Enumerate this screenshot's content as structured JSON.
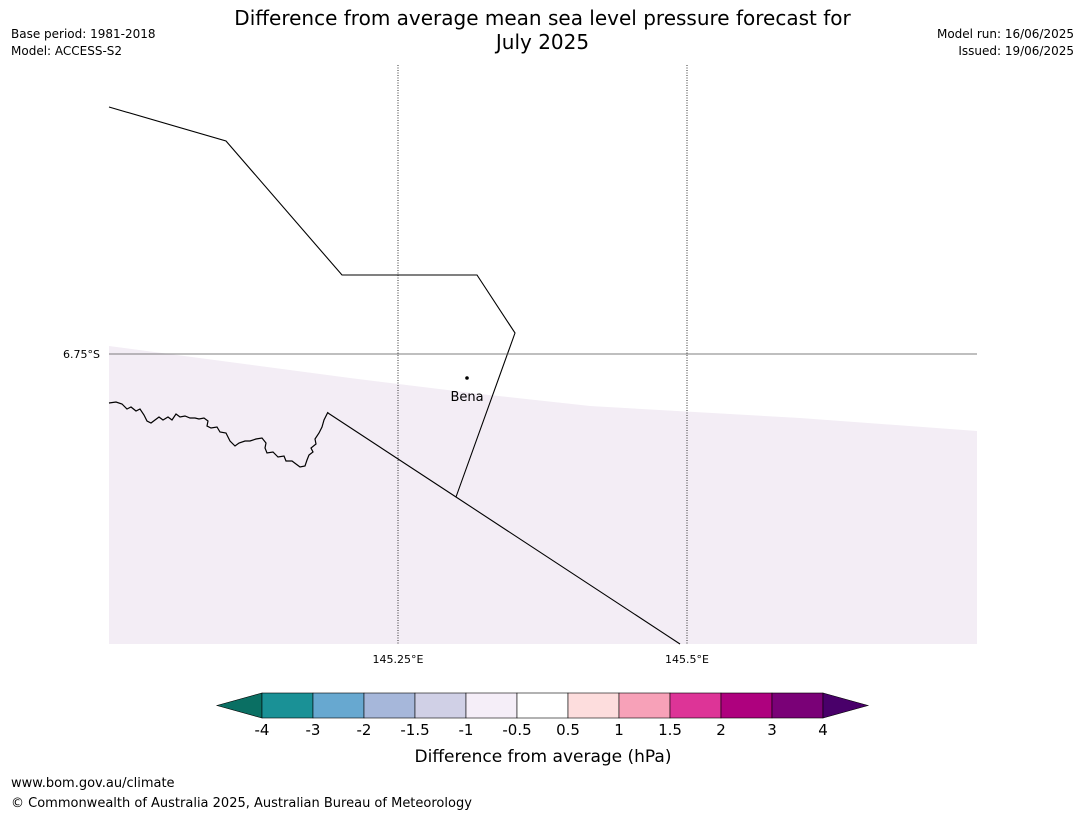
{
  "title": {
    "line1": "Difference from average mean sea level pressure forecast for",
    "line2": "July 2025"
  },
  "meta_left": {
    "base_period": "Base period: 1981-2018",
    "model": "Model: ACCESS-S2"
  },
  "meta_right": {
    "model_run": "Model run: 16/06/2025",
    "issued": "Issued: 19/06/2025"
  },
  "map": {
    "lat_labels": [
      "6.75°S"
    ],
    "lon_labels": [
      "145.25°E",
      "145.5°E"
    ],
    "place": "Bena",
    "colors": {
      "shaded_region": "#f3edf5",
      "background": "#ffffff"
    }
  },
  "colorbar": {
    "label": "Difference from average (hPa)",
    "tick_labels": [
      "-4",
      "-3",
      "-2",
      "-1.5",
      "-1",
      "-0.5",
      "0.5",
      "1",
      "1.5",
      "2",
      "3",
      "4"
    ],
    "colors": [
      "#0a6f63",
      "#1a9196",
      "#67a8d0",
      "#a6b7da",
      "#d0d0e6",
      "#f5eef8",
      "#ffffff",
      "#fddddd",
      "#f7a1b8",
      "#dd3497",
      "#ae017e",
      "#7a0177",
      "#49006a"
    ]
  },
  "footer": {
    "url": "www.bom.gov.au/climate",
    "copyright": "© Commonwealth of Australia 2025, Australian Bureau of Meteorology"
  }
}
